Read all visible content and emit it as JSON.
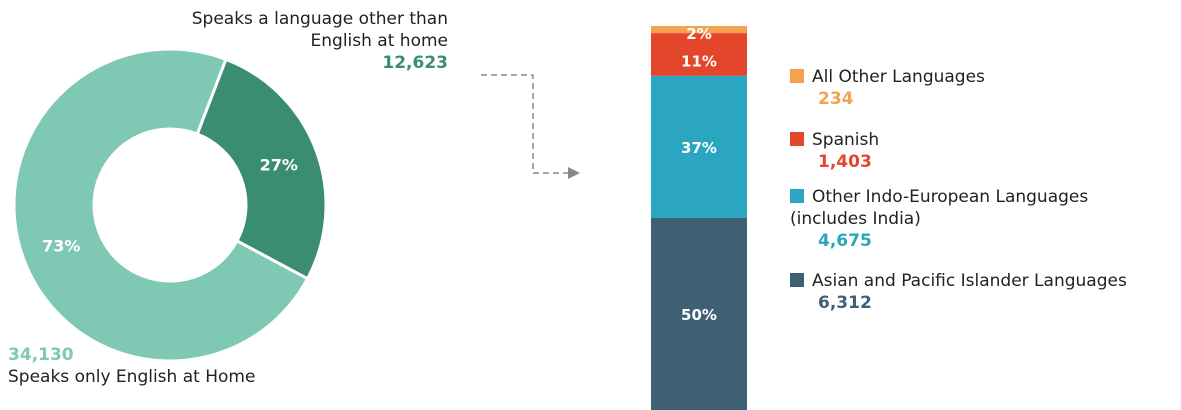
{
  "colors": {
    "donut_english": "#7ec8b4",
    "donut_other": "#3a8c73",
    "other_languages": "#f4a24f",
    "spanish": "#e4462b",
    "indo_european": "#2aa6c0",
    "asian_pacific": "#3f5f74"
  },
  "chart_data": [
    {
      "type": "pie",
      "variant": "donut",
      "slices": [
        {
          "label": "Speaks a language other than English at home",
          "value": 12623,
          "percent_label": "27%"
        },
        {
          "label": "Speaks only English at Home",
          "value": 34130,
          "percent_label": "73%"
        }
      ],
      "annotations": {
        "other_title_lines": [
          "Speaks a language other than",
          "English at home"
        ],
        "other_value": "12,623",
        "english_value": "34,130",
        "english_title": "Speaks only English at Home"
      }
    },
    {
      "type": "bar",
      "variant": "stacked-100",
      "categories": [
        ""
      ],
      "series": [
        {
          "name": "Asian and Pacific Islander Languages",
          "values": [
            6312
          ],
          "percent_label": "50%",
          "value_label": "6,312"
        },
        {
          "name": "Other Indo-European Languages (includes India)",
          "values": [
            4675
          ],
          "percent_label": "37%",
          "value_label": "4,675"
        },
        {
          "name": "Spanish",
          "values": [
            1403
          ],
          "percent_label": "11%",
          "value_label": "1,403"
        },
        {
          "name": "All Other Languages",
          "values": [
            234
          ],
          "percent_label": "2%",
          "value_label": "234"
        }
      ],
      "legend": "right"
    }
  ],
  "legend": [
    {
      "name": "All Other Languages",
      "value": "234"
    },
    {
      "name": "Spanish",
      "value": "1,403"
    },
    {
      "name_line1": "Other Indo-European Languages",
      "name_line2": "(includes India)",
      "value": "4,675"
    },
    {
      "name": "Asian and Pacific Islander Languages",
      "value": "6,312"
    }
  ]
}
